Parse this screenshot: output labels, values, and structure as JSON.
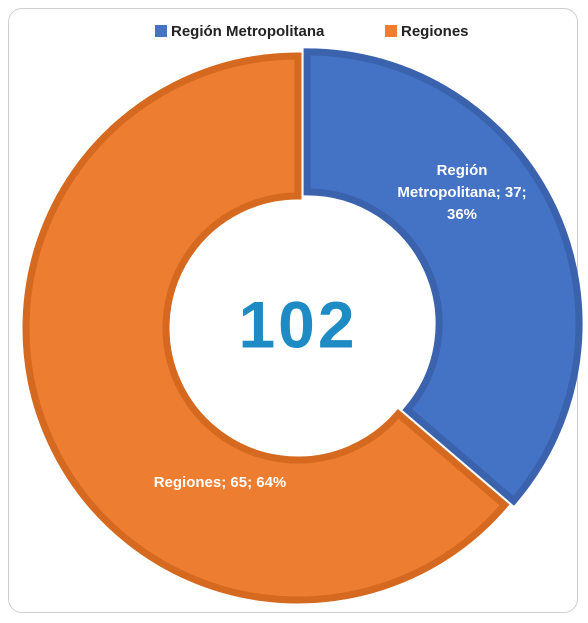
{
  "chart_data": {
    "type": "donut",
    "categories": [
      "Región Metropolitana",
      "Regiones"
    ],
    "values": [
      37,
      65
    ],
    "value_labels": [
      "Región Metropolitana; 37; 36%",
      "Regiones; 65; 64%"
    ],
    "colors": [
      "#4472c4",
      "#ed7d31"
    ],
    "total": 102,
    "legend": "top"
  }
}
